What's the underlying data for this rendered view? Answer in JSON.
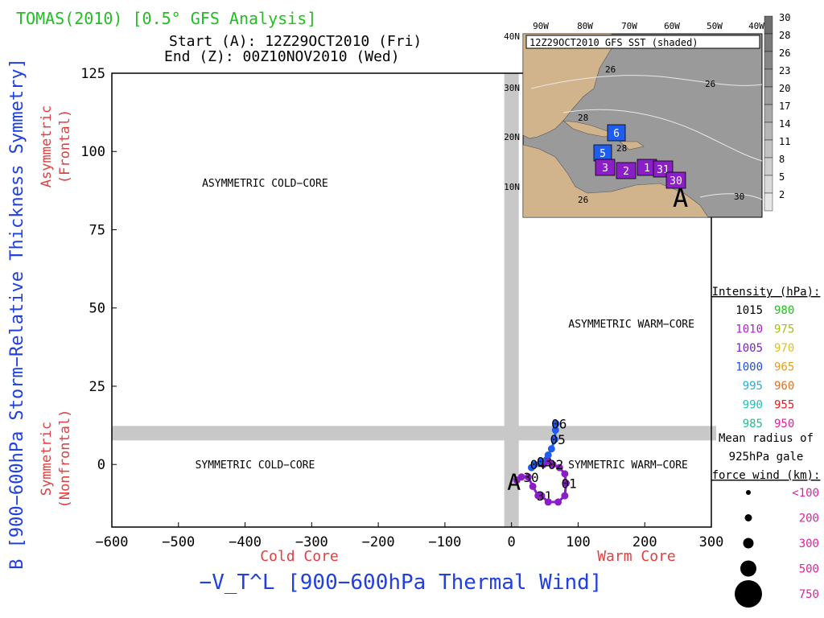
{
  "header": {
    "title": "TOMAS(2010) [0.5° GFS Analysis]",
    "start_line": "Start (A): 12Z29OCT2010 (Fri)",
    "end_line": "End (Z): 00Z10NOV2010 (Wed)"
  },
  "colors": {
    "title": "#1fc01f",
    "axis_label_blue": "#2040e0",
    "axis_label_red": "#e04040",
    "gray_band": "#c8c8c8",
    "track_purple": "#8a1fc8",
    "track_blue": "#1f5cf0",
    "map_land": "#d2b48c",
    "map_sea": "#9a9a9a"
  },
  "chart_data": [
    {
      "type": "scatter",
      "title": "",
      "xlabel": "−V_T^L [900−600hPa Thermal Wind]",
      "ylabel": "B [900−600hPa Storm−Relative Thickness Symmetry]",
      "xlim": [
        -600,
        300
      ],
      "ylim": [
        -20,
        125
      ],
      "xticks": [
        -600,
        -500,
        -400,
        -300,
        -200,
        -100,
        0,
        100,
        200,
        300
      ],
      "xtick_labels": [
        "−600",
        "−500",
        "−400",
        "−300",
        "−200",
        "−100",
        "0",
        "100",
        "200",
        "300"
      ],
      "yticks": [
        0,
        25,
        50,
        75,
        100,
        125
      ],
      "ytick_labels": [
        "0",
        "25",
        "50",
        "75",
        "100",
        "125"
      ],
      "x_sublabels": {
        "left": "Cold Core",
        "right": "Warm Core"
      },
      "y_sublabels": {
        "top": [
          "Asymmetric",
          "(Frontal)"
        ],
        "bottom": [
          "Symmetric",
          "(Nonfrontal)"
        ]
      },
      "quadrant_labels": [
        {
          "text": "ASYMMETRIC COLD−CORE",
          "x": -370,
          "y": 90
        },
        {
          "text": "ASYMMETRIC WARM−CORE",
          "x": 180,
          "y": 45
        },
        {
          "text": "SYMMETRIC COLD−CORE",
          "x": -385,
          "y": 0
        },
        {
          "text": "SYMMETRIC WARM−CORE",
          "x": 175,
          "y": 0
        }
      ],
      "reference_lines": {
        "x": 0,
        "y": 10
      },
      "series": [
        {
          "color": "#8a1fc8",
          "points": [
            {
              "x": 8,
              "y": -5,
              "label": "A"
            },
            {
              "x": 15,
              "y": -4
            },
            {
              "x": 25,
              "y": -4,
              "label": "30"
            },
            {
              "x": 32,
              "y": -7
            },
            {
              "x": 40,
              "y": -10
            },
            {
              "x": 45,
              "y": -10,
              "label": "31"
            },
            {
              "x": 55,
              "y": -12
            },
            {
              "x": 70,
              "y": -12
            },
            {
              "x": 80,
              "y": -10
            },
            {
              "x": 82,
              "y": -6,
              "label": "01"
            },
            {
              "x": 80,
              "y": -3
            },
            {
              "x": 72,
              "y": -1
            },
            {
              "x": 62,
              "y": 0,
              "label": "02"
            },
            {
              "x": 55,
              "y": 1
            },
            {
              "x": 48,
              "y": 0
            }
          ]
        },
        {
          "color": "#1f5cf0",
          "points": [
            {
              "x": 30,
              "y": -1
            },
            {
              "x": 35,
              "y": 0,
              "label": "04"
            },
            {
              "x": 45,
              "y": 1,
              "label": "03"
            },
            {
              "x": 55,
              "y": 3
            },
            {
              "x": 60,
              "y": 5
            },
            {
              "x": 65,
              "y": 8,
              "label": "05"
            },
            {
              "x": 66,
              "y": 11
            },
            {
              "x": 67,
              "y": 13,
              "label": "06"
            }
          ]
        }
      ]
    }
  ],
  "legend": {
    "intensity_title": "Intensity (hPa):",
    "intensity_rows": [
      {
        "left": "1015",
        "left_color": "#000000",
        "right": "980",
        "right_color": "#1fc01f"
      },
      {
        "left": "1010",
        "left_color": "#b020d0",
        "right": "975",
        "right_color": "#a0c020"
      },
      {
        "left": "1005",
        "left_color": "#7a20c8",
        "right": "970",
        "right_color": "#e0c020"
      },
      {
        "left": "1000",
        "left_color": "#2050e0",
        "right": "965",
        "right_color": "#e0a020"
      },
      {
        "left": "995",
        "left_color": "#20b0e0",
        "right": "960",
        "right_color": "#e07020"
      },
      {
        "left": "990",
        "left_color": "#20c0c0",
        "right": "955",
        "right_color": "#e02020"
      },
      {
        "left": "985",
        "left_color": "#20c090",
        "right": "950",
        "right_color": "#e020a0"
      }
    ],
    "radius_title": [
      "Mean radius of",
      "925hPa gale",
      "force wind (km):"
    ],
    "radius_rows": [
      {
        "label": "<100",
        "size": 1
      },
      {
        "label": "200",
        "size": 2
      },
      {
        "label": "300",
        "size": 3
      },
      {
        "label": "500",
        "size": 4
      },
      {
        "label": "750",
        "size": 5
      }
    ]
  },
  "inset": {
    "title": "12Z29OCT2010 GFS SST (shaded)",
    "lon_labels": [
      "90W",
      "80W",
      "70W",
      "60W",
      "50W",
      "40W"
    ],
    "lat_labels": [
      "40N",
      "30N",
      "20N",
      "10N"
    ],
    "sst_contours": [
      "26",
      "26",
      "28",
      "28",
      "26",
      "30"
    ],
    "colorbar_labels": [
      "30",
      "28",
      "26",
      "23",
      "20",
      "17",
      "14",
      "11",
      "8",
      "5",
      "2"
    ],
    "track_boxes": [
      {
        "label": "6",
        "color": "#1f5cf0"
      },
      {
        "label": "5",
        "color": "#1f5cf0"
      },
      {
        "label": "3",
        "color": "#8a1fc8"
      },
      {
        "label": "2",
        "color": "#8a1fc8"
      },
      {
        "label": "1",
        "color": "#8a1fc8"
      },
      {
        "label": "31",
        "color": "#8a1fc8"
      },
      {
        "label": "30",
        "color": "#8a1fc8"
      }
    ],
    "start_marker": "A"
  }
}
